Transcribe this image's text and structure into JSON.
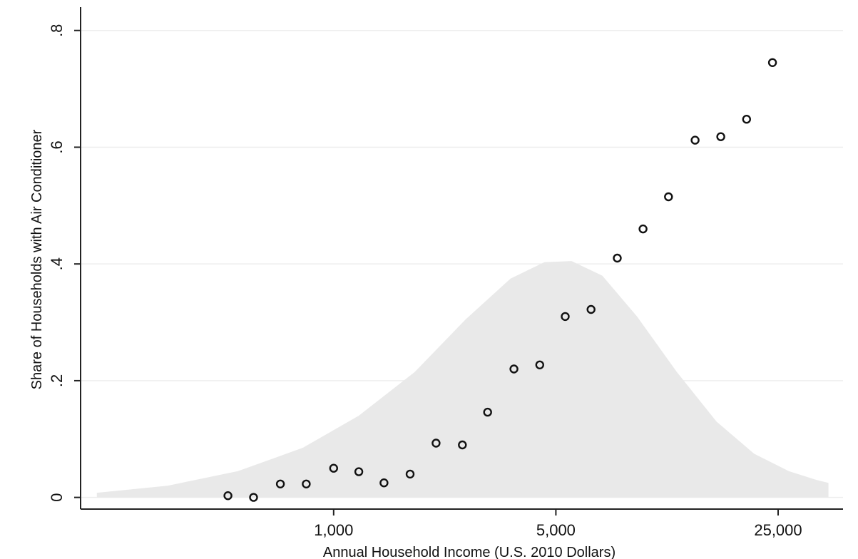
{
  "chart_data": {
    "type": "scatter",
    "title": "",
    "xlabel": "Annual Household Income (U.S. 2010 Dollars)",
    "ylabel": "Share of Households with Air Conditioner",
    "x_scale": "log",
    "xlim": [
      160,
      40000
    ],
    "ylim": [
      -0.02,
      0.84
    ],
    "x_ticks": [
      {
        "value": 1000,
        "label": "1,000"
      },
      {
        "value": 5000,
        "label": "5,000"
      },
      {
        "value": 25000,
        "label": "25,000"
      }
    ],
    "y_ticks": [
      {
        "value": 0,
        "label": "0"
      },
      {
        "value": 0.2,
        "label": ".2"
      },
      {
        "value": 0.4,
        "label": ".4"
      },
      {
        "value": 0.6,
        "label": ".6"
      },
      {
        "value": 0.8,
        "label": ".8"
      }
    ],
    "grid": true,
    "points": [
      {
        "x": 465,
        "y": 0.003
      },
      {
        "x": 560,
        "y": 0.0
      },
      {
        "x": 680,
        "y": 0.023
      },
      {
        "x": 820,
        "y": 0.023
      },
      {
        "x": 1000,
        "y": 0.05
      },
      {
        "x": 1200,
        "y": 0.044
      },
      {
        "x": 1440,
        "y": 0.025
      },
      {
        "x": 1740,
        "y": 0.04
      },
      {
        "x": 2100,
        "y": 0.093
      },
      {
        "x": 2540,
        "y": 0.09
      },
      {
        "x": 3050,
        "y": 0.146
      },
      {
        "x": 3690,
        "y": 0.22
      },
      {
        "x": 4450,
        "y": 0.227
      },
      {
        "x": 5350,
        "y": 0.31
      },
      {
        "x": 6450,
        "y": 0.322
      },
      {
        "x": 7800,
        "y": 0.41
      },
      {
        "x": 9400,
        "y": 0.46
      },
      {
        "x": 11300,
        "y": 0.515
      },
      {
        "x": 13700,
        "y": 0.612
      },
      {
        "x": 16500,
        "y": 0.618
      },
      {
        "x": 19900,
        "y": 0.648
      },
      {
        "x": 24000,
        "y": 0.745
      }
    ],
    "density": {
      "type": "area",
      "x": [
        180,
        300,
        500,
        800,
        1200,
        1800,
        2600,
        3600,
        4600,
        5600,
        7000,
        9000,
        12000,
        16000,
        21000,
        27000,
        33000,
        36000
      ],
      "y": [
        0.008,
        0.02,
        0.045,
        0.085,
        0.14,
        0.215,
        0.305,
        0.375,
        0.403,
        0.405,
        0.38,
        0.31,
        0.215,
        0.13,
        0.075,
        0.045,
        0.03,
        0.025
      ]
    }
  }
}
